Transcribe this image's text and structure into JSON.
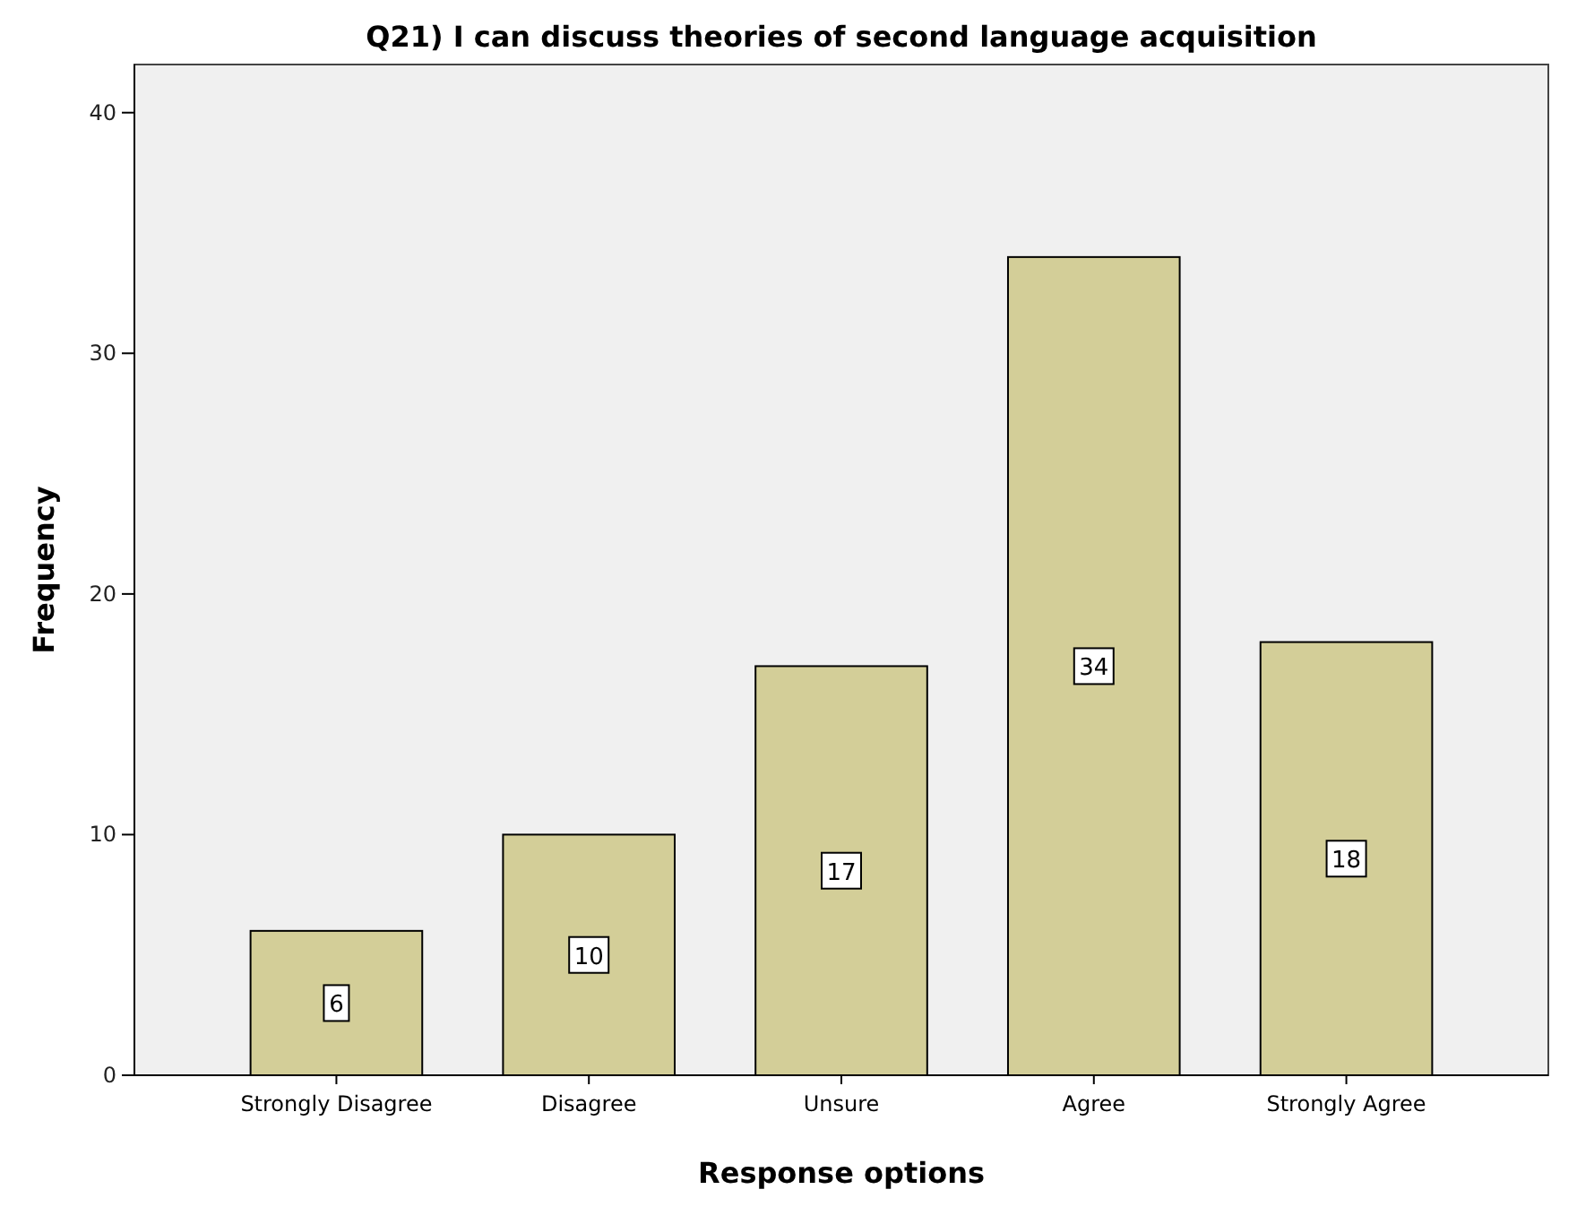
{
  "chart_data": {
    "type": "bar",
    "title": "Q21) I can discuss theories of second language acquisition",
    "xlabel": "Response options",
    "ylabel": "Frequency",
    "categories": [
      "Strongly Disagree",
      "Disagree",
      "Unsure",
      "Agree",
      "Strongly Agree"
    ],
    "values": [
      6,
      10,
      17,
      34,
      18
    ],
    "color": "#d3ce98",
    "ylim": [
      0,
      42
    ],
    "yticks": [
      0,
      10,
      20,
      30,
      40
    ],
    "grid": false,
    "data_labels": true
  }
}
